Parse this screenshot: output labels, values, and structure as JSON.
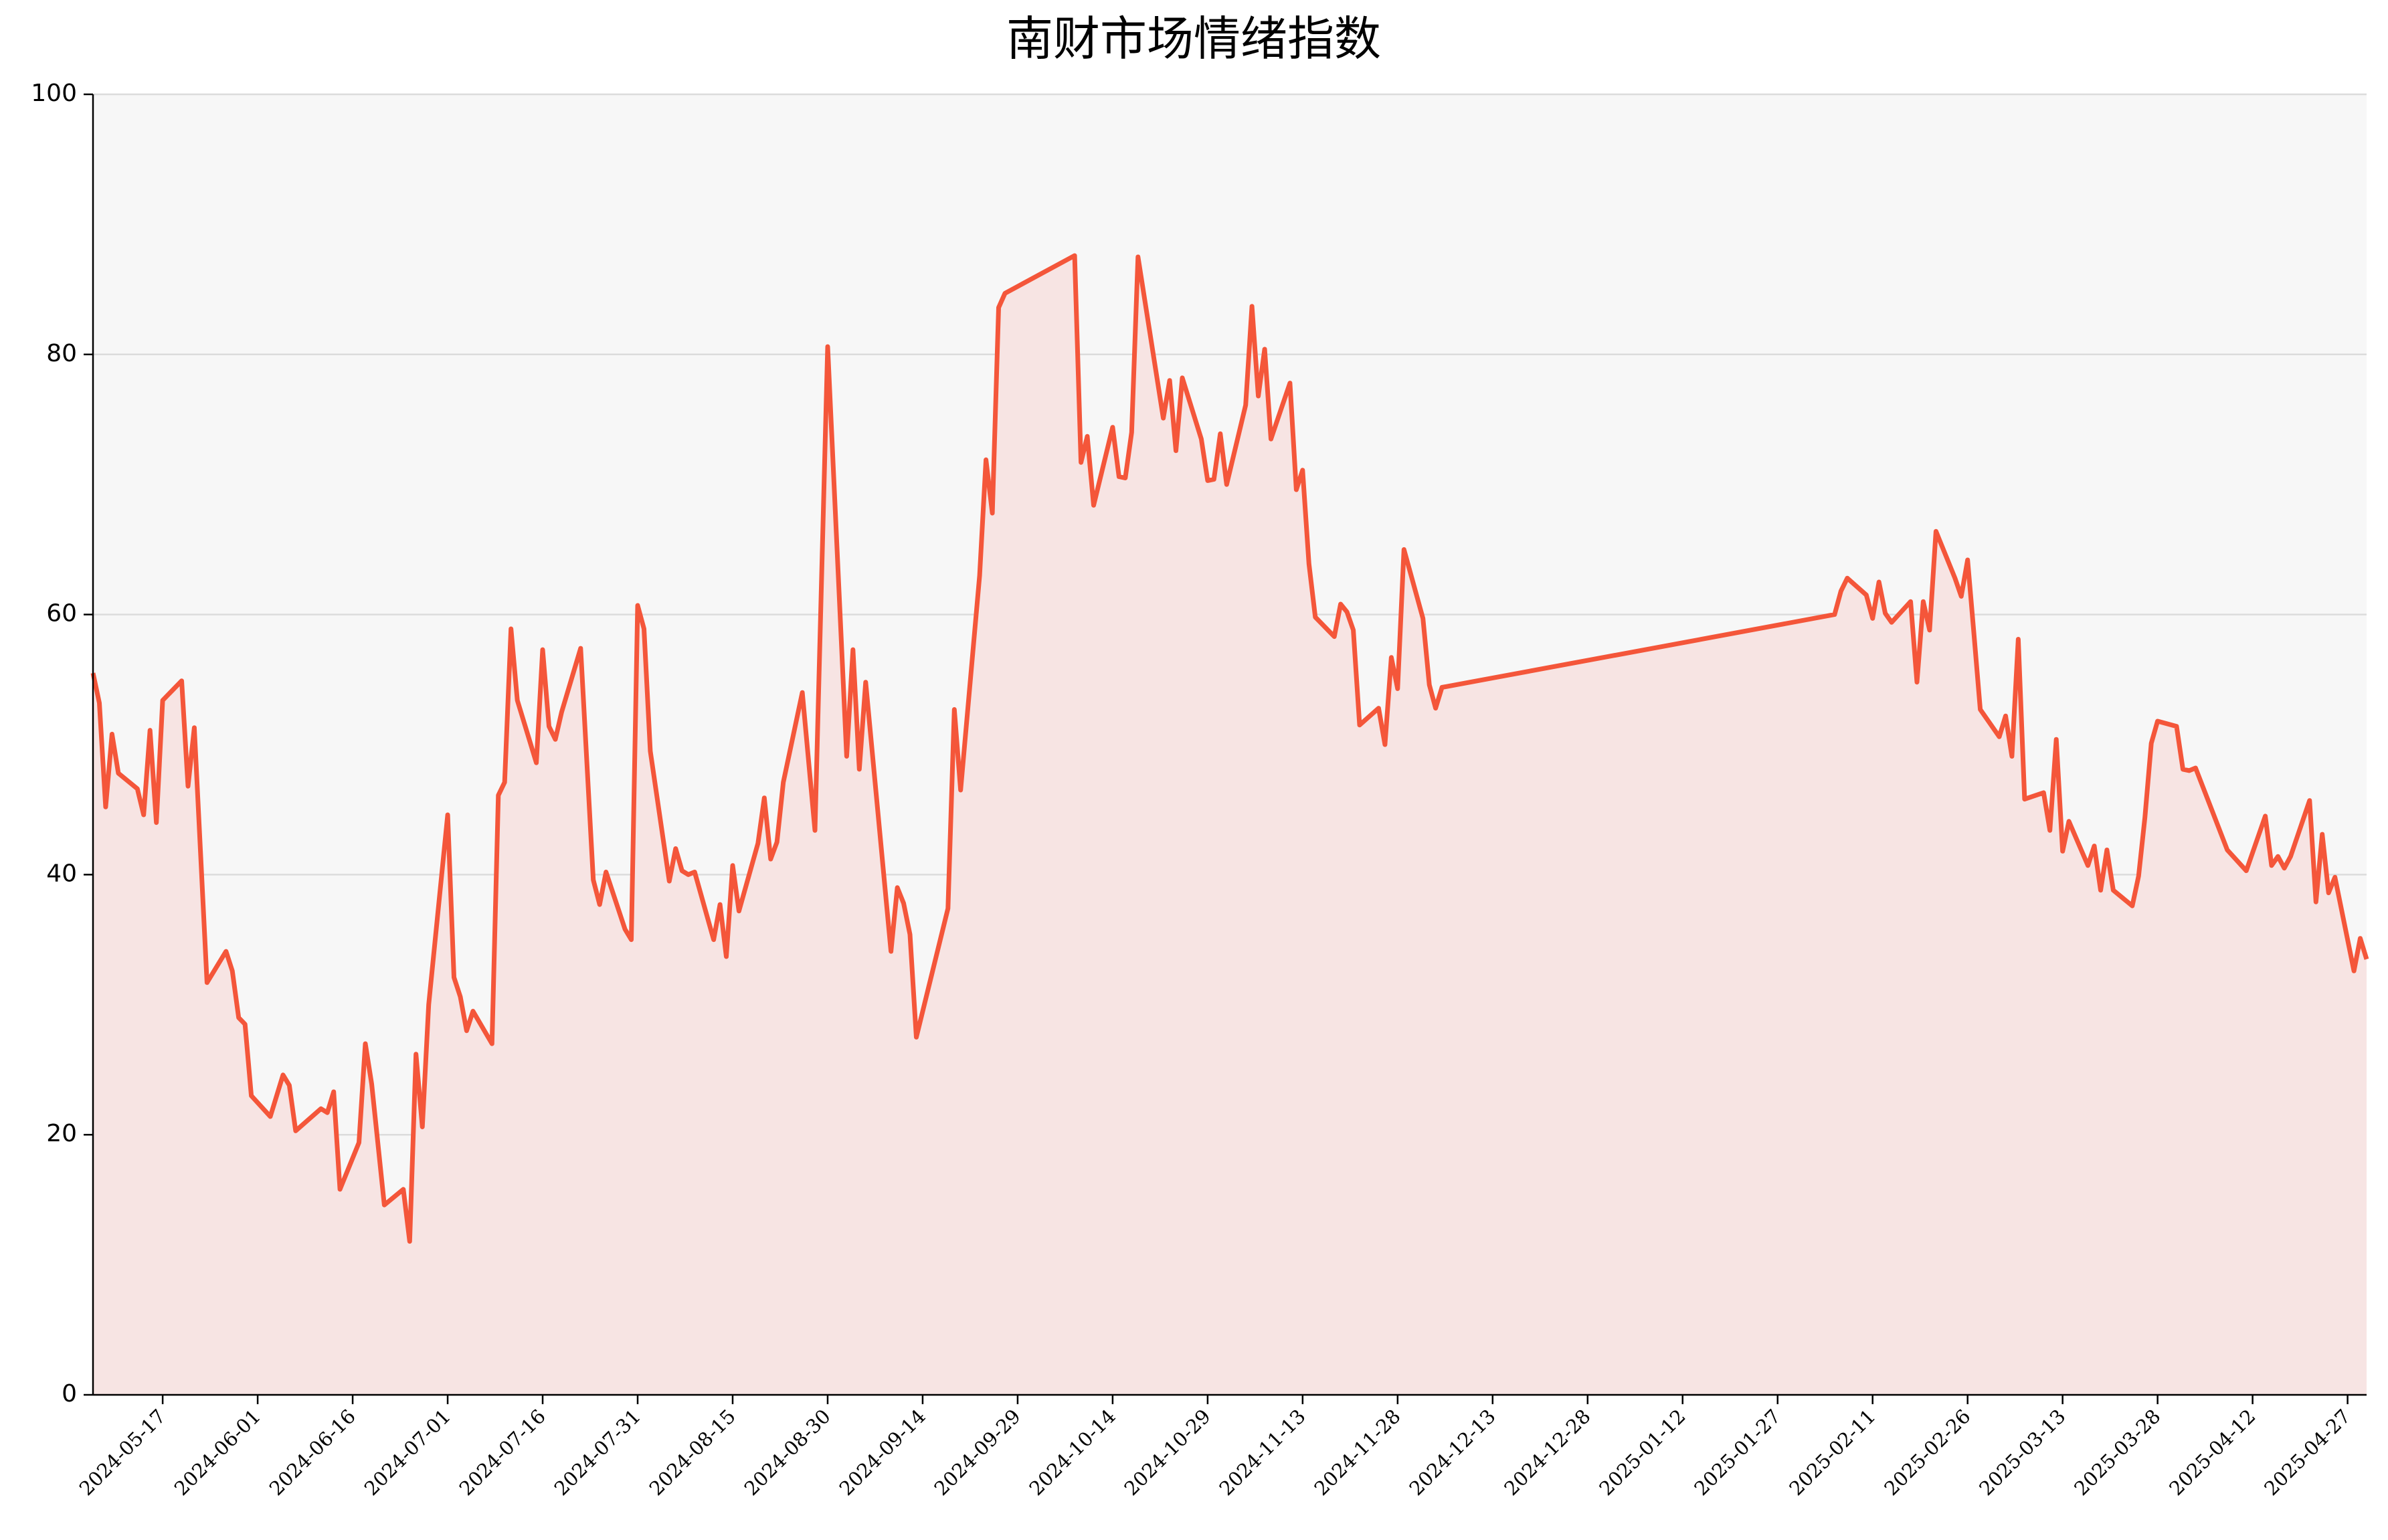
{
  "chart_data": {
    "type": "line",
    "title": "南财市场情绪指数",
    "color": "#f4563a",
    "fill": "#f7e4e3",
    "background": "#f7f7f7",
    "grid": true,
    "xlim": [
      "2024-05-06",
      "2025-04-30"
    ],
    "xticks": [
      "2024-05-17",
      "2024-06-01",
      "2024-06-16",
      "2024-07-01",
      "2024-07-16",
      "2024-07-31",
      "2024-08-15",
      "2024-08-30",
      "2024-09-14",
      "2024-09-29",
      "2024-10-14",
      "2024-10-29",
      "2024-11-13",
      "2024-11-28",
      "2024-12-13",
      "2024-12-28",
      "2025-01-12",
      "2025-01-27",
      "2025-02-11",
      "2025-02-26",
      "2025-03-13",
      "2025-03-28",
      "2025-04-12",
      "2025-04-27"
    ],
    "ylim": [
      0,
      100
    ],
    "yticks": [
      0,
      20,
      40,
      60,
      80,
      100
    ],
    "x": [
      "2024-05-06",
      "2024-05-07",
      "2024-05-08",
      "2024-05-09",
      "2024-05-10",
      "2024-05-13",
      "2024-05-14",
      "2024-05-15",
      "2024-05-16",
      "2024-05-17",
      "2024-05-20",
      "2024-05-21",
      "2024-05-22",
      "2024-05-24",
      "2024-05-27",
      "2024-05-28",
      "2024-05-29",
      "2024-05-30",
      "2024-05-31",
      "2024-06-03",
      "2024-06-05",
      "2024-06-06",
      "2024-06-07",
      "2024-06-11",
      "2024-06-12",
      "2024-06-13",
      "2024-06-14",
      "2024-06-17",
      "2024-06-18",
      "2024-06-19",
      "2024-06-21",
      "2024-06-24",
      "2024-06-25",
      "2024-06-26",
      "2024-06-27",
      "2024-06-28",
      "2024-07-01",
      "2024-07-02",
      "2024-07-03",
      "2024-07-04",
      "2024-07-05",
      "2024-07-08",
      "2024-07-09",
      "2024-07-10",
      "2024-07-11",
      "2024-07-12",
      "2024-07-15",
      "2024-07-16",
      "2024-07-17",
      "2024-07-18",
      "2024-07-19",
      "2024-07-22",
      "2024-07-24",
      "2024-07-25",
      "2024-07-26",
      "2024-07-29",
      "2024-07-30",
      "2024-07-31",
      "2024-08-01",
      "2024-08-02",
      "2024-08-05",
      "2024-08-06",
      "2024-08-07",
      "2024-08-08",
      "2024-08-09",
      "2024-08-12",
      "2024-08-13",
      "2024-08-14",
      "2024-08-15",
      "2024-08-16",
      "2024-08-19",
      "2024-08-20",
      "2024-08-21",
      "2024-08-22",
      "2024-08-23",
      "2024-08-26",
      "2024-08-28",
      "2024-08-30",
      "2024-09-02",
      "2024-09-03",
      "2024-09-04",
      "2024-09-05",
      "2024-09-09",
      "2024-09-10",
      "2024-09-11",
      "2024-09-12",
      "2024-09-13",
      "2024-09-18",
      "2024-09-19",
      "2024-09-20",
      "2024-09-23",
      "2024-09-24",
      "2024-09-25",
      "2024-09-26",
      "2024-09-27",
      "2024-10-08",
      "2024-10-09",
      "2024-10-10",
      "2024-10-11",
      "2024-10-14",
      "2024-10-15",
      "2024-10-16",
      "2024-10-17",
      "2024-10-18",
      "2024-10-22",
      "2024-10-23",
      "2024-10-24",
      "2024-10-25",
      "2024-10-28",
      "2024-10-29",
      "2024-10-30",
      "2024-10-31",
      "2024-11-01",
      "2024-11-04",
      "2024-11-05",
      "2024-11-06",
      "2024-11-07",
      "2024-11-08",
      "2024-11-11",
      "2024-11-12",
      "2024-11-13",
      "2024-11-14",
      "2024-11-15",
      "2024-11-18",
      "2024-11-19",
      "2024-11-20",
      "2024-11-21",
      "2024-11-22",
      "2024-11-25",
      "2024-11-26",
      "2024-11-27",
      "2024-11-28",
      "2024-11-29",
      "2024-12-02",
      "2024-12-03",
      "2024-12-04",
      "2024-12-05",
      "2025-02-05",
      "2025-02-06",
      "2025-02-07",
      "2025-02-10",
      "2025-02-11",
      "2025-02-12",
      "2025-02-13",
      "2025-02-14",
      "2025-02-17",
      "2025-02-18",
      "2025-02-19",
      "2025-02-20",
      "2025-02-21",
      "2025-02-24",
      "2025-02-25",
      "2025-02-26",
      "2025-02-27",
      "2025-02-28",
      "2025-03-03",
      "2025-03-04",
      "2025-03-05",
      "2025-03-06",
      "2025-03-07",
      "2025-03-10",
      "2025-03-11",
      "2025-03-12",
      "2025-03-13",
      "2025-03-14",
      "2025-03-17",
      "2025-03-18",
      "2025-03-19",
      "2025-03-20",
      "2025-03-21",
      "2025-03-24",
      "2025-03-25",
      "2025-03-26",
      "2025-03-27",
      "2025-03-28",
      "2025-03-31",
      "2025-04-01",
      "2025-04-02",
      "2025-04-03",
      "2025-04-08",
      "2025-04-11",
      "2025-04-14",
      "2025-04-15",
      "2025-04-16",
      "2025-04-17",
      "2025-04-18",
      "2025-04-21",
      "2025-04-22",
      "2025-04-23",
      "2025-04-24",
      "2025-04-25",
      "2025-04-28",
      "2025-04-29",
      "2025-04-30"
    ],
    "values": [
      55.5,
      53.2,
      45.2,
      50.8,
      47.8,
      46.6,
      44.6,
      51.1,
      44.0,
      53.4,
      54.9,
      46.8,
      51.3,
      31.7,
      34.1,
      32.6,
      29.0,
      28.5,
      23.0,
      21.4,
      24.6,
      23.8,
      20.3,
      22.0,
      21.7,
      23.3,
      15.8,
      19.4,
      27.0,
      23.9,
      14.6,
      15.8,
      11.8,
      26.2,
      20.6,
      30.0,
      44.6,
      32.1,
      30.6,
      28.0,
      29.5,
      27.0,
      46.1,
      47.1,
      58.9,
      53.4,
      48.6,
      57.3,
      51.4,
      50.4,
      52.5,
      57.4,
      39.6,
      37.7,
      40.2,
      35.8,
      35.0,
      60.7,
      58.9,
      49.5,
      39.5,
      42.0,
      40.3,
      40.0,
      40.2,
      35.0,
      37.7,
      33.7,
      40.7,
      37.2,
      42.4,
      45.9,
      41.2,
      42.5,
      47.1,
      54.0,
      43.4,
      80.6,
      49.1,
      57.3,
      48.1,
      54.8,
      34.1,
      39.0,
      37.8,
      35.4,
      27.5,
      37.4,
      52.7,
      46.5,
      63.0,
      71.9,
      67.8,
      83.6,
      84.7,
      87.6,
      71.7,
      73.7,
      68.4,
      74.4,
      70.6,
      70.5,
      74.0,
      87.5,
      75.1,
      78.0,
      72.6,
      78.2,
      73.5,
      70.3,
      70.4,
      73.9,
      70.0,
      76.1,
      83.7,
      76.8,
      80.4,
      73.5,
      77.8,
      69.6,
      71.1,
      63.9,
      59.8,
      58.3,
      60.8,
      60.2,
      58.8,
      51.5,
      52.8,
      50.0,
      56.7,
      54.3,
      65.0,
      59.7,
      54.6,
      52.8,
      54.4,
      60.0,
      61.8,
      62.8,
      61.5,
      59.7,
      62.5,
      60.1,
      59.4,
      61.0,
      54.8,
      61.0,
      58.8,
      66.4,
      62.8,
      61.4,
      64.2,
      58.5,
      52.7,
      50.6,
      52.2,
      49.1,
      58.1,
      45.8,
      46.3,
      43.4,
      50.4,
      41.8,
      44.1,
      40.7,
      42.2,
      38.8,
      41.9,
      38.8,
      37.6,
      39.9,
      44.4,
      50.1,
      51.8,
      51.4,
      48.1,
      48.0,
      48.2,
      41.9,
      40.3,
      44.5,
      40.7,
      41.4,
      40.5,
      41.4,
      45.7,
      37.9,
      43.1,
      38.6,
      39.8,
      32.6,
      35.1,
      33.5
    ]
  }
}
